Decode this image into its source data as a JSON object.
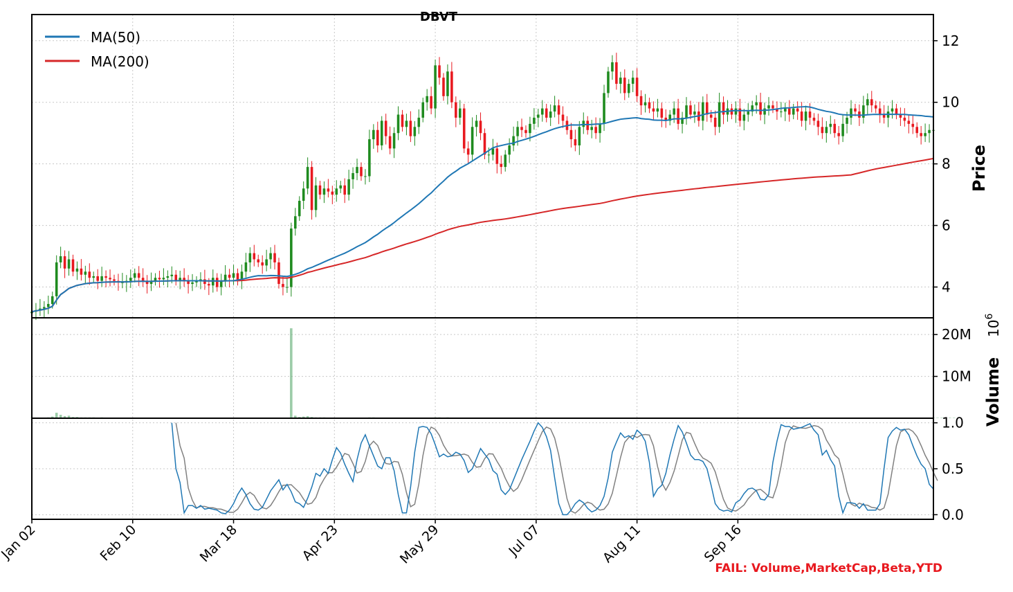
{
  "chart_data": {
    "type": "candlestick",
    "title": "DBVT",
    "x_tick_labels": [
      "Jan 02",
      "Feb 10",
      "Mar 18",
      "Apr 23",
      "May 29",
      "Jul 07",
      "Aug 11",
      "Sep 16"
    ],
    "price_panel": {
      "ylabel": "Price",
      "ylim": [
        3.0,
        12.85
      ],
      "yticks": [
        4,
        6,
        8,
        10,
        12
      ],
      "legend_position": "top-left",
      "legend": [
        {
          "name": "MA(50)",
          "color": "#1f77b4"
        },
        {
          "name": "MA(200)",
          "color": "#d62728"
        }
      ],
      "up_color": "#1f8b1f",
      "down_color": "#e8191f",
      "closes": [
        3.2,
        3.25,
        3.3,
        3.35,
        3.45,
        3.7,
        4.8,
        5.0,
        4.6,
        4.9,
        4.5,
        4.6,
        4.4,
        4.5,
        4.3,
        4.35,
        4.2,
        4.35,
        4.3,
        4.25,
        4.2,
        4.15,
        4.15,
        4.2,
        4.3,
        4.45,
        4.3,
        4.2,
        4.1,
        4.2,
        4.3,
        4.25,
        4.3,
        4.35,
        4.4,
        4.2,
        4.3,
        4.2,
        4.1,
        4.15,
        4.2,
        4.25,
        4.1,
        4.05,
        4.3,
        4.0,
        4.2,
        4.4,
        4.3,
        4.45,
        4.2,
        4.5,
        4.8,
        5.1,
        4.9,
        4.8,
        4.7,
        4.9,
        5.1,
        4.8,
        4.1,
        4.0,
        4.0,
        5.9,
        6.3,
        6.8,
        7.2,
        7.9,
        6.5,
        7.3,
        7.0,
        7.2,
        7.1,
        7.0,
        7.2,
        7.3,
        7.0,
        7.5,
        7.7,
        7.9,
        7.6,
        7.6,
        8.8,
        9.1,
        8.6,
        9.4,
        8.9,
        8.5,
        9.0,
        9.6,
        9.2,
        9.4,
        8.9,
        9.2,
        9.5,
        10.0,
        10.2,
        9.8,
        11.2,
        10.8,
        10.2,
        11.0,
        10.0,
        9.5,
        9.8,
        8.5,
        8.3,
        9.2,
        9.4,
        9.0,
        8.3,
        8.3,
        8.5,
        8.0,
        7.9,
        8.3,
        8.6,
        8.9,
        9.2,
        9.1,
        9.0,
        9.3,
        9.5,
        9.6,
        9.8,
        9.5,
        9.7,
        9.9,
        9.6,
        9.4,
        9.1,
        8.8,
        8.6,
        9.2,
        9.4,
        9.1,
        9.2,
        9.0,
        9.3,
        10.3,
        11.0,
        11.3,
        10.6,
        10.8,
        10.3,
        10.6,
        10.8,
        10.2,
        9.9,
        10.0,
        9.8,
        9.7,
        9.8,
        9.5,
        9.4,
        9.6,
        9.8,
        9.3,
        9.5,
        9.9,
        9.6,
        9.7,
        9.4,
        10.0,
        9.6,
        9.5,
        9.2,
        10.0,
        9.6,
        9.8,
        9.6,
        9.8,
        9.4,
        9.6,
        9.7,
        9.9,
        10.0,
        9.6,
        9.8,
        9.9,
        9.8,
        9.7,
        9.7,
        9.8,
        9.6,
        9.8,
        9.7,
        9.4,
        9.7,
        9.5,
        9.4,
        9.2,
        9.0,
        9.2,
        9.3,
        9.0,
        8.9,
        9.3,
        9.5,
        9.8,
        9.7,
        9.5,
        9.9,
        10.1,
        9.9,
        9.8,
        9.6,
        9.5,
        9.7,
        9.8,
        9.6,
        9.5,
        9.4,
        9.3,
        9.2,
        9.0,
        8.9,
        9.0,
        9.1,
        9.1
      ]
    },
    "volume_panel": {
      "ylabel": "Volume",
      "multiplier_label": "10",
      "multiplier_exponent": "6",
      "ylim": [
        0,
        24
      ],
      "yticks": [
        {
          "value": 10,
          "label": "10M"
        },
        {
          "value": 20,
          "label": "20M"
        }
      ],
      "bar_color": "#5aaa6e",
      "volumes_millions": [
        0.1,
        0.1,
        0.1,
        0.1,
        0.2,
        0.4,
        1.3,
        0.8,
        0.5,
        0.6,
        0.3,
        0.3,
        0.2,
        0.2,
        0.2,
        0.2,
        0.1,
        0.2,
        0.1,
        0.1,
        0.1,
        0.1,
        0.1,
        0.1,
        0.1,
        0.1,
        0.1,
        0.1,
        0.1,
        0.1,
        0.1,
        0.1,
        0.1,
        0.1,
        0.1,
        0.1,
        0.1,
        0.1,
        0.1,
        0.1,
        0.1,
        0.1,
        0.1,
        0.1,
        0.1,
        0.1,
        0.1,
        0.1,
        0.1,
        0.1,
        0.1,
        0.1,
        0.1,
        0.1,
        0.1,
        0.1,
        0.1,
        0.1,
        0.1,
        0.1,
        0.1,
        0.1,
        0.1,
        21.5,
        0.6,
        0.3,
        0.4,
        0.5,
        0.3,
        0.2,
        0.2,
        0.2,
        0.1,
        0.1,
        0.1,
        0.1,
        0.1,
        0.1,
        0.1,
        0.1,
        0.1,
        0.1,
        0.2,
        0.2,
        0.1,
        0.1,
        0.1,
        0.1,
        0.1,
        0.1,
        0.1,
        0.1,
        0.1,
        0.1,
        0.1,
        0.1,
        0.1,
        0.1,
        0.2,
        0.2,
        0.1,
        0.2,
        0.1,
        0.1,
        0.1,
        0.1,
        0.1,
        0.1,
        0.1,
        0.1,
        0.1,
        0.1,
        0.1,
        0.1,
        0.1,
        0.1,
        0.1,
        0.1,
        0.1,
        0.1,
        0.1,
        0.1,
        0.1,
        0.1,
        0.1,
        0.1,
        0.1,
        0.1,
        0.1,
        0.1,
        0.1,
        0.1,
        0.1,
        0.1,
        0.1,
        0.1,
        0.1,
        0.1,
        0.1,
        0.1,
        0.1,
        0.1,
        0.1,
        0.1,
        0.1,
        0.1,
        0.1,
        0.1,
        0.1,
        0.1,
        0.1,
        0.1,
        0.1,
        0.1,
        0.1,
        0.1,
        0.1,
        0.1,
        0.1,
        0.1,
        0.1,
        0.1,
        0.1,
        0.1,
        0.1,
        0.1,
        0.1,
        0.1,
        0.1,
        0.1,
        0.1,
        0.1,
        0.1,
        0.1,
        0.1,
        0.1,
        0.1,
        0.1,
        0.1,
        0.1,
        0.1,
        0.1,
        0.1,
        0.1,
        0.1,
        0.1,
        0.1,
        0.1,
        0.1,
        0.1,
        0.1,
        0.1,
        0.1,
        0.1,
        0.1,
        0.1,
        0.1,
        0.1,
        0.1,
        0.1,
        0.1,
        0.1,
        0.1,
        0.1,
        0.1,
        0.1,
        0.1,
        0.1,
        0.1,
        0.1,
        0.1,
        0.1,
        0.1,
        0.1,
        0.1,
        0.1,
        0.1,
        0.1,
        0.1,
        0.1,
        0.1,
        0.1,
        0.1,
        0.1,
        0.1
      ]
    },
    "oscillator_panel": {
      "ylim": [
        -0.05,
        1.05
      ],
      "yticks": [
        0.0,
        0.5,
        1.0
      ],
      "k_color": "#1f77b4",
      "d_color": "#808080",
      "k": [
        1.0,
        0.5,
        0.35,
        0.02,
        0.1,
        0.1,
        0.07,
        0.1,
        0.06,
        0.07,
        0.06,
        0.05,
        0.02,
        0.01,
        0.05,
        0.12,
        0.22,
        0.29,
        0.22,
        0.12,
        0.06,
        0.05,
        0.08,
        0.17,
        0.26,
        0.32,
        0.38,
        0.27,
        0.33,
        0.25,
        0.14,
        0.12,
        0.08,
        0.18,
        0.3,
        0.45,
        0.42,
        0.5,
        0.45,
        0.6,
        0.73,
        0.67,
        0.55,
        0.45,
        0.36,
        0.6,
        0.78,
        0.87,
        0.75,
        0.64,
        0.53,
        0.5,
        0.62,
        0.62,
        0.48,
        0.22,
        0.02,
        0.02,
        0.3,
        0.68,
        0.95,
        0.96,
        0.95,
        0.88,
        0.76,
        0.63,
        0.66,
        0.63,
        0.64,
        0.68,
        0.66,
        0.59,
        0.46,
        0.5,
        0.61,
        0.72,
        0.66,
        0.6,
        0.48,
        0.44,
        0.27,
        0.22,
        0.27,
        0.38,
        0.49,
        0.6,
        0.7,
        0.8,
        0.91,
        1.0,
        0.95,
        0.85,
        0.7,
        0.4,
        0.12,
        0.0,
        0.0,
        0.05,
        0.12,
        0.16,
        0.13,
        0.07,
        0.03,
        0.05,
        0.1,
        0.2,
        0.4,
        0.68,
        0.79,
        0.89,
        0.84,
        0.86,
        0.82,
        0.92,
        0.88,
        0.8,
        0.57,
        0.2,
        0.28,
        0.32,
        0.45,
        0.65,
        0.82,
        0.97,
        0.9,
        0.78,
        0.65,
        0.6,
        0.6,
        0.58,
        0.5,
        0.32,
        0.12,
        0.06,
        0.04,
        0.05,
        0.03,
        0.13,
        0.16,
        0.23,
        0.28,
        0.29,
        0.26,
        0.17,
        0.16,
        0.22,
        0.57,
        0.8,
        0.98,
        0.96,
        0.96,
        0.93,
        0.94,
        0.95,
        0.97,
        0.99,
        0.92,
        0.87,
        0.65,
        0.7,
        0.6,
        0.53,
        0.2,
        0.02,
        0.13,
        0.13,
        0.12,
        0.07,
        0.12,
        0.05,
        0.05,
        0.05,
        0.12,
        0.5,
        0.84,
        0.91,
        0.95,
        0.92,
        0.93,
        0.87,
        0.75,
        0.64,
        0.55,
        0.5,
        0.33,
        0.28
      ]
    },
    "annotation": "FAIL: Volume,MarketCap,Beta,YTD",
    "annotation_color": "#e8191f",
    "grid": true
  }
}
